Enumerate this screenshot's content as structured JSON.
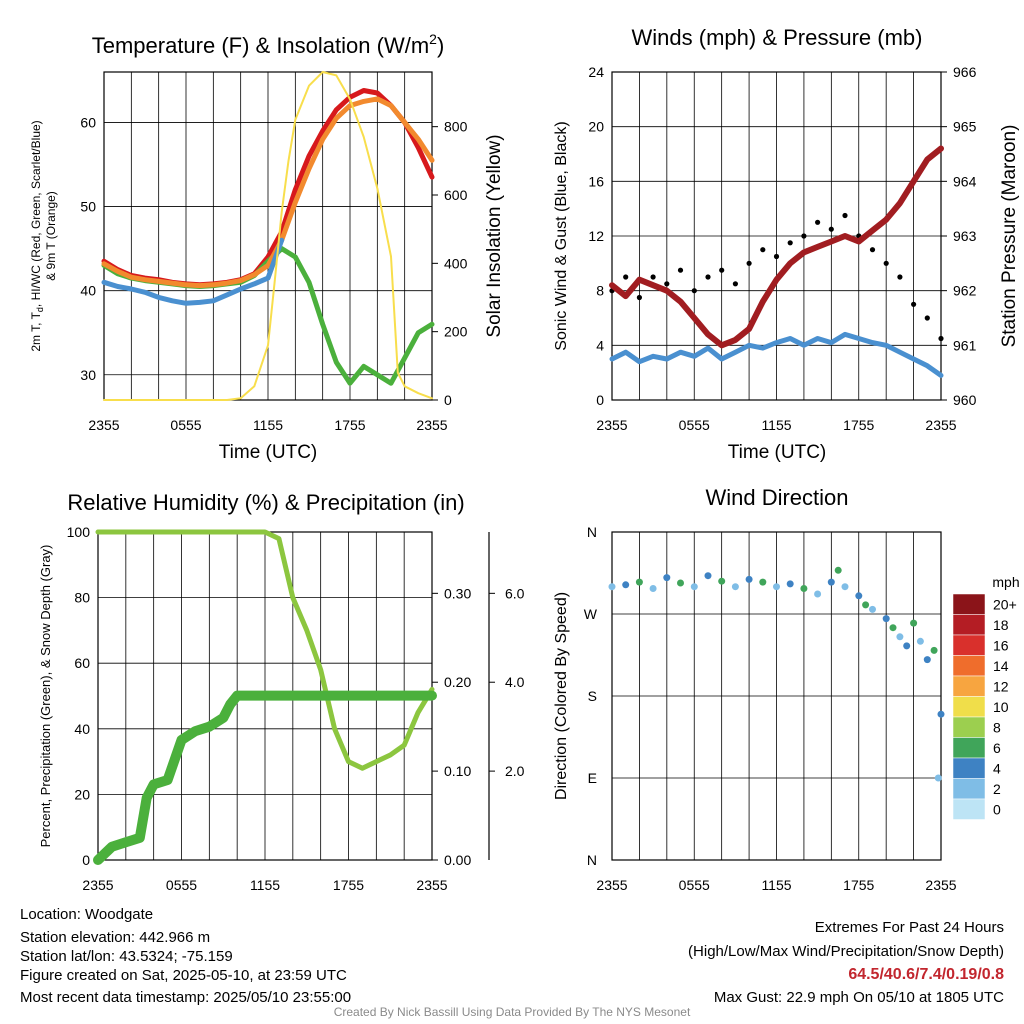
{
  "colors": {
    "red": "#d7191c",
    "green": "#4bb03c",
    "scarlet": "#c8202a",
    "blue": "#4a90d0",
    "orange": "#f28a2e",
    "yellow": "#f8de4c",
    "maroon": "#a11d21",
    "black": "#000000",
    "rh": "#8cc63f",
    "precip": "#4bb03c"
  },
  "chart_data": [
    {
      "id": "temperature",
      "type": "line",
      "title": "Temperature (F) & Insolation (W/m",
      "title_sup": "2",
      "title_close": ")",
      "xlabel": "Time (UTC)",
      "ylabel_left_1": "2m T, T",
      "ylabel_left_sub": "d",
      "ylabel_left_2": ", HI/WC (Red, Green, Scarlet/Blue)",
      "ylabel_left_3": "& 9m T (Orange)",
      "ylabel_right": "Solar Insolation (Yellow)",
      "xticks": [
        "2355",
        "0555",
        "1155",
        "1755",
        "2355"
      ],
      "xlim": [
        0,
        24
      ],
      "ylim_left": [
        27,
        66
      ],
      "yticks_left": [
        30,
        40,
        50,
        60
      ],
      "ylim_right": [
        0,
        960
      ],
      "yticks_right": [
        0,
        200,
        400,
        600,
        800
      ],
      "series": [
        {
          "name": "Red",
          "axis": "left",
          "color": "#d7191c",
          "x": [
            0,
            1,
            2,
            3,
            4,
            5,
            6,
            7,
            8,
            9,
            10,
            11,
            12,
            13,
            14,
            15,
            16,
            17,
            18,
            19,
            20,
            21,
            22,
            23,
            24
          ],
          "values": [
            43.5,
            42.5,
            41.8,
            41.5,
            41.3,
            41,
            40.8,
            40.7,
            40.8,
            41,
            41.3,
            42,
            44,
            47,
            52,
            56,
            59,
            61.5,
            63,
            63.8,
            63.5,
            62,
            60,
            57,
            53.5
          ]
        },
        {
          "name": "Green",
          "axis": "left",
          "color": "#4bb03c",
          "x": [
            0,
            1,
            2,
            3,
            4,
            5,
            6,
            7,
            8,
            9,
            10,
            11,
            12,
            13,
            14,
            15,
            16,
            17,
            18,
            19,
            20,
            21,
            22,
            23,
            24
          ],
          "values": [
            43,
            42,
            41.5,
            41.2,
            41,
            40.8,
            40.6,
            40.5,
            40.6,
            40.8,
            41,
            41.8,
            43.5,
            45,
            44,
            41,
            36,
            31.5,
            29,
            31,
            30,
            29,
            32,
            35,
            36
          ]
        },
        {
          "name": "Orange",
          "axis": "left",
          "color": "#f28a2e",
          "x": [
            0,
            1,
            2,
            3,
            4,
            5,
            6,
            7,
            8,
            9,
            10,
            11,
            12,
            13,
            14,
            15,
            16,
            17,
            18,
            19,
            20,
            21,
            22,
            23,
            24
          ],
          "values": [
            43.2,
            42.3,
            41.6,
            41.3,
            41.1,
            40.9,
            40.7,
            40.6,
            40.7,
            40.9,
            41.2,
            41.9,
            43,
            46,
            50.5,
            54.5,
            58,
            60.5,
            62,
            62.5,
            62.8,
            62,
            60,
            58,
            55.5
          ]
        },
        {
          "name": "Blue",
          "axis": "left",
          "color": "#4a90d0",
          "x": [
            0,
            1,
            2,
            3,
            4,
            5,
            6,
            7,
            8,
            9,
            10,
            11,
            12,
            13
          ],
          "values": [
            41,
            40.5,
            40.2,
            39.8,
            39.2,
            38.8,
            38.5,
            38.6,
            38.8,
            39.5,
            40.2,
            40.8,
            41.5,
            46
          ]
        },
        {
          "name": "Yellow",
          "axis": "right",
          "color": "#f8de4c",
          "x": [
            0,
            9,
            10,
            11,
            12,
            12.5,
            13,
            13.5,
            14,
            15,
            16,
            17,
            18,
            19,
            20,
            21,
            21.5,
            22,
            23,
            24
          ],
          "values": [
            0,
            0,
            5,
            40,
            160,
            350,
            550,
            700,
            820,
            920,
            960,
            950,
            880,
            770,
            620,
            420,
            80,
            40,
            20,
            5
          ]
        }
      ]
    },
    {
      "id": "winds",
      "type": "scatter",
      "title": "Winds (mph) & Pressure (mb)",
      "xlabel": "Time (UTC)",
      "ylabel_left": "Sonic Wind & Gust (Blue, Black)",
      "ylabel_right": "Station Pressure (Maroon)",
      "xticks": [
        "2355",
        "0555",
        "1155",
        "1755",
        "2355"
      ],
      "xlim": [
        0,
        24
      ],
      "ylim_left": [
        0,
        24
      ],
      "yticks_left": [
        0,
        4,
        8,
        12,
        16,
        20,
        24
      ],
      "ylim_right": [
        960,
        966
      ],
      "yticks_right": [
        960,
        961,
        962,
        963,
        964,
        965,
        966
      ],
      "series": [
        {
          "name": "Blue",
          "axis": "left",
          "color": "#4a90d0",
          "x": [
            0,
            1,
            2,
            3,
            4,
            5,
            6,
            7,
            8,
            9,
            10,
            11,
            12,
            13,
            14,
            15,
            16,
            17,
            18,
            19,
            20,
            21,
            22,
            23,
            24
          ],
          "values": [
            3,
            3.5,
            2.8,
            3.2,
            3,
            3.5,
            3.2,
            3.8,
            3,
            3.5,
            4,
            3.8,
            4.2,
            4.5,
            4,
            4.5,
            4.2,
            4.8,
            4.5,
            4.2,
            4,
            3.5,
            3,
            2.5,
            1.8
          ]
        },
        {
          "name": "Black",
          "axis": "left",
          "color": "#000000",
          "x": [
            0,
            1,
            2,
            3,
            4,
            5,
            6,
            7,
            8,
            9,
            10,
            11,
            12,
            13,
            14,
            15,
            16,
            17,
            18,
            19,
            20,
            21,
            22,
            23,
            24
          ],
          "values": [
            8,
            9,
            7.5,
            9,
            8.5,
            9.5,
            8,
            9,
            9.5,
            8.5,
            10,
            11,
            10.5,
            11.5,
            12,
            13,
            12.5,
            13.5,
            12,
            11,
            10,
            9,
            7,
            6,
            4.5
          ]
        },
        {
          "name": "Maroon",
          "axis": "right",
          "color": "#a11d21",
          "x": [
            0,
            1,
            2,
            3,
            4,
            5,
            6,
            7,
            8,
            9,
            10,
            11,
            12,
            13,
            14,
            15,
            16,
            17,
            18,
            19,
            20,
            21,
            22,
            23,
            24
          ],
          "values": [
            962.1,
            961.9,
            962.2,
            962.1,
            962,
            961.8,
            961.5,
            961.2,
            961,
            961.1,
            961.3,
            961.8,
            962.2,
            962.5,
            962.7,
            962.8,
            962.9,
            963,
            962.9,
            963.1,
            963.3,
            963.6,
            964,
            964.4,
            964.6
          ]
        }
      ]
    },
    {
      "id": "humidity",
      "type": "line",
      "title": "Relative Humidity (%) & Precipitation (in)",
      "ylabel_left": "Percent, Precipitation (Green), & Snow Depth (Gray)",
      "xticks": [
        "2355",
        "0555",
        "1155",
        "1755",
        "2355"
      ],
      "xlim": [
        0,
        24
      ],
      "ylim_left": [
        0,
        100
      ],
      "yticks_left": [
        0,
        20,
        40,
        60,
        80,
        100
      ],
      "precip_ticks": [
        "0.00",
        "0.10",
        "0.20",
        "0.30"
      ],
      "precip_max": 0.369,
      "snow_ticks": [
        "2.0",
        "4.0",
        "6.0"
      ],
      "snow_max": 7.38,
      "series": [
        {
          "name": "Green",
          "axis": "left",
          "color": "#8cc63f",
          "x": [
            0,
            2,
            4,
            6,
            8,
            10,
            11,
            12,
            13,
            14,
            15,
            16,
            17,
            18,
            19,
            20,
            21,
            22,
            23,
            24
          ],
          "values": [
            100,
            100,
            100,
            100,
            100,
            100,
            100,
            100,
            98,
            80,
            70,
            58,
            40,
            30,
            28,
            30,
            32,
            35,
            45,
            52
          ]
        },
        {
          "name": "Precip",
          "axis": "precip",
          "color": "#4bb03c",
          "x": [
            0,
            1,
            2,
            3,
            3.5,
            4,
            5,
            6,
            7,
            8,
            9,
            9.5,
            10,
            11,
            12,
            15,
            18,
            21,
            24
          ],
          "values": [
            0,
            0.015,
            0.02,
            0.025,
            0.07,
            0.085,
            0.09,
            0.135,
            0.145,
            0.15,
            0.16,
            0.175,
            0.185,
            0.185,
            0.185,
            0.185,
            0.185,
            0.185,
            0.185
          ]
        }
      ]
    },
    {
      "id": "direction",
      "type": "scatter",
      "title": "Wind Direction",
      "ylabel_left": "Direction (Colored By Speed)",
      "xticks": [
        "2355",
        "0555",
        "1155",
        "1755",
        "2355"
      ],
      "xlim": [
        0,
        24
      ],
      "yticks_labels": [
        "N",
        "E",
        "S",
        "W",
        "N"
      ],
      "ylim_left": [
        0,
        360
      ],
      "legend_title": "mph",
      "legend_levels": [
        "0",
        "2",
        "4",
        "6",
        "8",
        "10",
        "12",
        "14",
        "16",
        "18",
        "20+"
      ],
      "legend_colors": [
        "#bde4f5",
        "#7fbde6",
        "#3e82c3",
        "#40a55a",
        "#9ccf4f",
        "#f0de4a",
        "#f7a540",
        "#ef6d2c",
        "#d9302c",
        "#b41d24",
        "#8b1419"
      ],
      "series": [
        {
          "name": "Direction",
          "axis": "left",
          "x": [
            0,
            1,
            2,
            3,
            4,
            5,
            6,
            7,
            8,
            9,
            10,
            11,
            12,
            13,
            14,
            15,
            16,
            16.5,
            17,
            18,
            18.5,
            19,
            20,
            20.5,
            21,
            21.5,
            22,
            22.5,
            23,
            23.5,
            23.8,
            24
          ],
          "values": [
            300,
            302,
            305,
            298,
            310,
            304,
            300,
            312,
            306,
            300,
            308,
            305,
            300,
            303,
            298,
            292,
            305,
            318,
            300,
            290,
            280,
            275,
            265,
            255,
            245,
            235,
            260,
            240,
            220,
            230,
            90,
            160
          ]
        }
      ]
    }
  ],
  "info": {
    "location": "Location: Woodgate",
    "elevation": "Station elevation: 442.966 m",
    "latlon": "Station lat/lon: 43.5324; -75.159",
    "created": "Figure created on Sat, 2025-05-10, at 23:59 UTC",
    "recent": "Most recent data timestamp: 2025/05/10 23:55:00"
  },
  "extremes": {
    "title": "Extremes For Past 24 Hours",
    "subtitle": "(High/Low/Max Wind/Precipitation/Snow Depth)",
    "values": "64.5/40.6/7.4/0.19/0.8",
    "gust": "Max Gust: 22.9 mph On 05/10 at 1805 UTC"
  },
  "credit": "Created By Nick Bassill Using Data Provided By The NYS Mesonet"
}
